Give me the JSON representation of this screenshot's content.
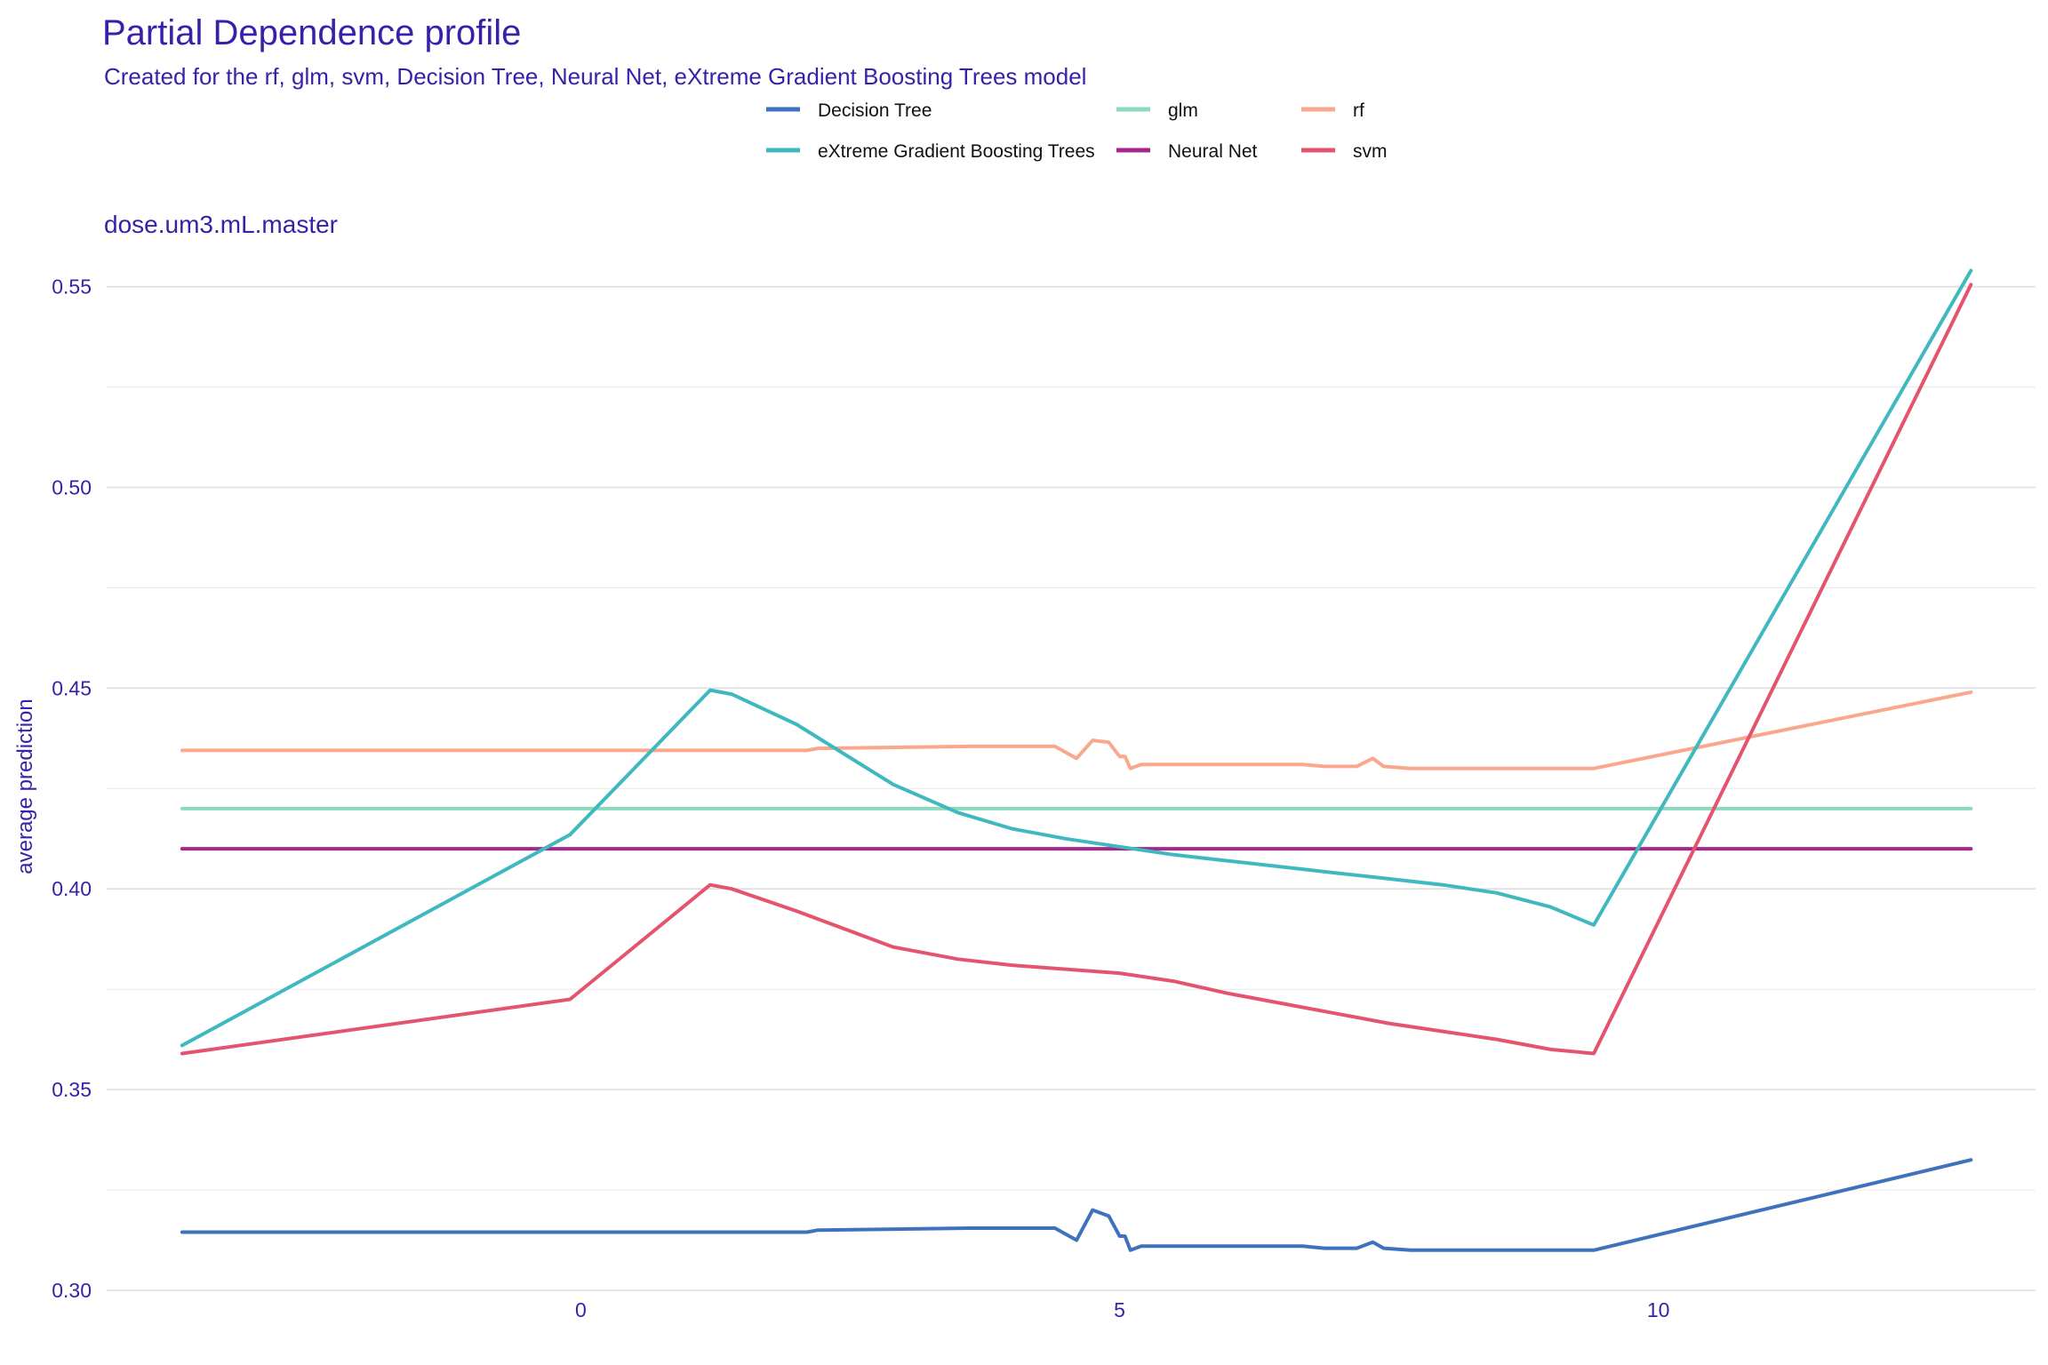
{
  "chart_data": {
    "type": "line",
    "title": "Partial Dependence profile",
    "subtitle": "Created for the rf, glm, svm, Decision Tree, Neural Net, eXtreme Gradient Boosting Trees model",
    "panel_label": "dose.um3.mL.master",
    "xlabel": "",
    "ylabel": "average prediction",
    "xlim": [
      -4.4,
      13.5
    ],
    "ylim": [
      0.3,
      0.555
    ],
    "x_ticks": [
      0,
      5,
      10
    ],
    "x_tick_labels": [
      "0",
      "5",
      "10"
    ],
    "y_ticks": [
      0.3,
      0.35,
      0.4,
      0.45,
      0.5,
      0.55
    ],
    "y_tick_labels": [
      "0.30",
      "0.35",
      "0.40",
      "0.45",
      "0.50",
      "0.55"
    ],
    "grid": true,
    "legend_position": "top",
    "legend_items": [
      {
        "label": "Decision Tree",
        "color": "#3f72bd"
      },
      {
        "label": "glm",
        "color": "#8cd9c0"
      },
      {
        "label": "rf",
        "color": "#f9a88d"
      },
      {
        "label": "eXtreme Gradient Boosting Trees",
        "color": "#3fb8c0"
      },
      {
        "label": "Neural Net",
        "color": "#a5268c"
      },
      {
        "label": "svm",
        "color": "#e4546e"
      }
    ],
    "series": [
      {
        "name": "Neural Net",
        "color": "#a5268c",
        "x": [
          -3.7,
          12.9
        ],
        "y": [
          0.41,
          0.41
        ]
      },
      {
        "name": "glm",
        "color": "#8cd9c0",
        "x": [
          -3.7,
          12.9
        ],
        "y": [
          0.42,
          0.42
        ]
      },
      {
        "name": "rf",
        "color": "#f9a88d",
        "x": [
          -3.7,
          2.1,
          2.2,
          3.6,
          4.4,
          4.6,
          4.75,
          4.9,
          5.0,
          5.05,
          5.1,
          5.2,
          6.7,
          6.9,
          7.2,
          7.35,
          7.45,
          7.7,
          9.4,
          12.9
        ],
        "y": [
          0.4345,
          0.4345,
          0.435,
          0.4355,
          0.4355,
          0.4325,
          0.437,
          0.4365,
          0.433,
          0.433,
          0.43,
          0.431,
          0.431,
          0.4305,
          0.4305,
          0.4325,
          0.4305,
          0.43,
          0.43,
          0.449
        ]
      },
      {
        "name": "Decision Tree",
        "color": "#3f72bd",
        "x": [
          -3.7,
          2.1,
          2.2,
          3.6,
          4.4,
          4.6,
          4.75,
          4.9,
          5.0,
          5.05,
          5.1,
          5.2,
          6.7,
          6.9,
          7.2,
          7.35,
          7.45,
          7.7,
          9.4,
          12.9
        ],
        "y": [
          0.3145,
          0.3145,
          0.315,
          0.3155,
          0.3155,
          0.3125,
          0.32,
          0.3185,
          0.3135,
          0.3135,
          0.31,
          0.311,
          0.311,
          0.3105,
          0.3105,
          0.312,
          0.3105,
          0.31,
          0.31,
          0.3325
        ]
      },
      {
        "name": "eXtreme Gradient Boosting Trees",
        "color": "#3fb8c0",
        "x": [
          -3.7,
          -0.1,
          1.2,
          1.4,
          2.0,
          2.9,
          3.5,
          4.0,
          4.5,
          5.0,
          5.5,
          6.0,
          6.5,
          7.0,
          7.5,
          8.0,
          8.5,
          9.0,
          9.4,
          12.9
        ],
        "y": [
          0.361,
          0.4135,
          0.4495,
          0.4485,
          0.441,
          0.426,
          0.419,
          0.415,
          0.4125,
          0.4105,
          0.4085,
          0.407,
          0.4055,
          0.404,
          0.4025,
          0.401,
          0.399,
          0.3955,
          0.391,
          0.554
        ]
      },
      {
        "name": "svm",
        "color": "#e4546e",
        "x": [
          -3.7,
          -0.1,
          1.2,
          1.4,
          2.0,
          2.9,
          3.5,
          4.0,
          4.5,
          5.0,
          5.5,
          6.0,
          6.5,
          7.0,
          7.5,
          8.0,
          8.5,
          9.0,
          9.4,
          12.9
        ],
        "y": [
          0.359,
          0.3725,
          0.401,
          0.4,
          0.3945,
          0.3855,
          0.3825,
          0.381,
          0.38,
          0.379,
          0.377,
          0.374,
          0.3715,
          0.369,
          0.3665,
          0.3645,
          0.3625,
          0.36,
          0.359,
          0.5505
        ]
      }
    ]
  }
}
